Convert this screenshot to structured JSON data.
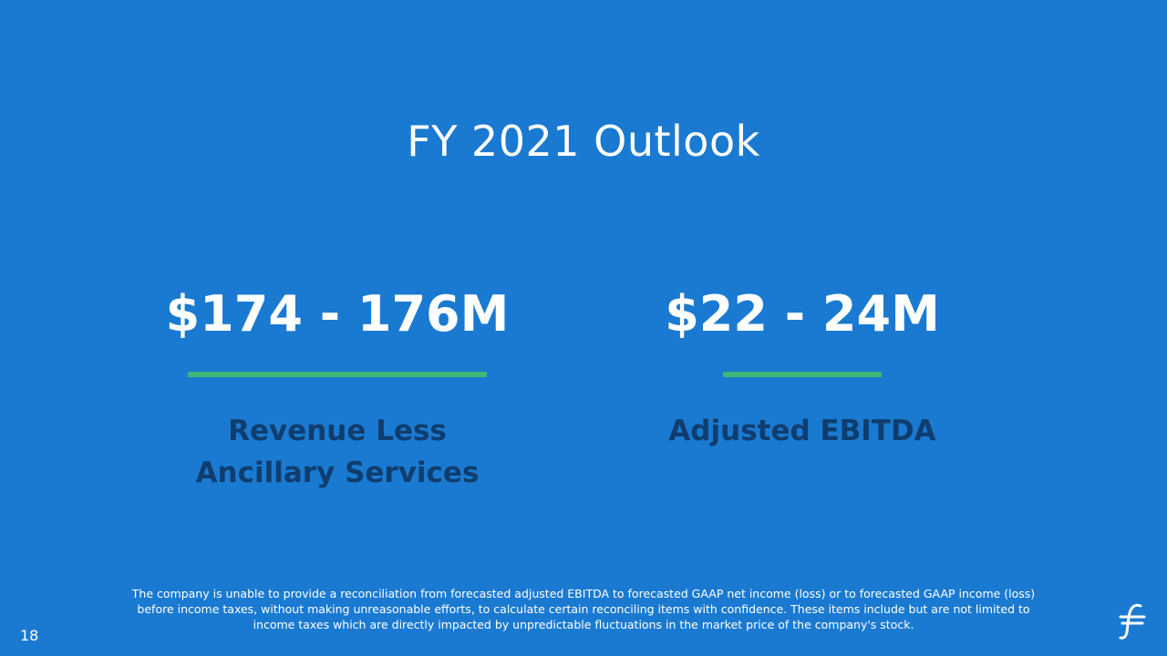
{
  "slide": {
    "title": "FY 2021 Outlook",
    "page_number": "18",
    "metrics": [
      {
        "value": "$174 - 176M",
        "label_lines": [
          "Revenue Less",
          "Ancillary Services"
        ]
      },
      {
        "value": "$22 - 24M",
        "label_lines": [
          "Adjusted EBITDA"
        ]
      }
    ],
    "footnote_lines": [
      "The company is unable to provide a reconciliation from forecasted adjusted EBITDA to forecasted GAAP net income (loss) or to forecasted GAAP income (loss)",
      "before income taxes, without making unreasonable efforts, to calculate certain reconciling items with confidence. These items include but are not limited to",
      "income taxes which are directly impacted by unpredictable fluctuations in the market price of the company's stock."
    ],
    "logo_icon": "brand-logo-icon"
  },
  "colors": {
    "background": "#1a7ad1",
    "accent_rule": "#3cb878",
    "label_text": "#0f3d6e",
    "text": "#ffffff"
  }
}
